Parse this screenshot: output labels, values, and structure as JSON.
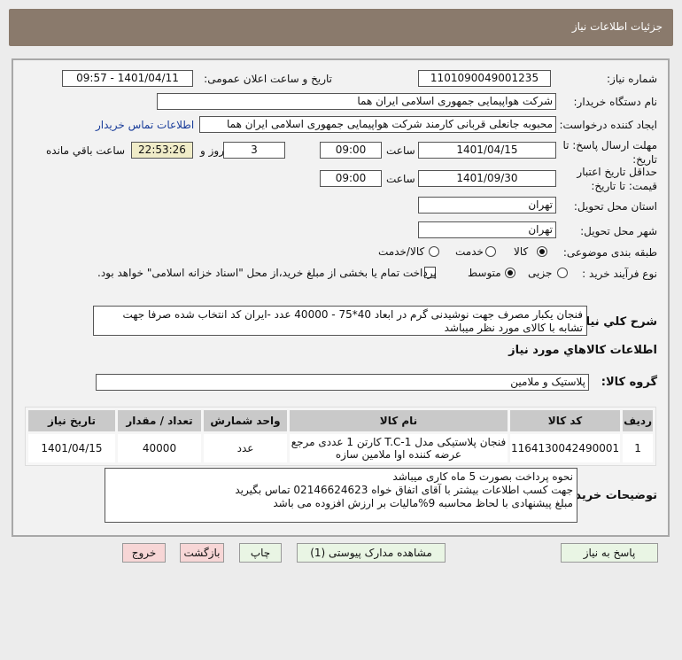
{
  "header": {
    "title": "جزئیات اطلاعات نیاز"
  },
  "form": {
    "need_number_label": "شماره نیاز:",
    "need_number": "1101090049001235",
    "announce_label": "تاریخ و ساعت اعلان عمومی:",
    "announce_value": "1401/04/11 - 09:57",
    "buyer_org_label": "نام دستگاه خریدار:",
    "buyer_org": "شرکت هواپیمایی جمهوری اسلامی ایران هما",
    "creator_label": "ایجاد کننده درخواست:",
    "creator": "محبوبه جانعلی قربانی کارمند شرکت هواپیمایی جمهوری اسلامی ایران هما",
    "contact_link": "اطلاعات تماس خریدار",
    "deadline_label": "مهلت ارسال پاسخ: تا تاریخ:",
    "deadline_date": "1401/04/15",
    "time_label": "ساعت",
    "deadline_time": "09:00",
    "days": "3",
    "days_label": "روز و",
    "remaining": "22:53:26",
    "remaining_label": "ساعت باقي مانده",
    "validity_label": "حداقل تاریخ اعتبار قیمت: تا تاریخ:",
    "validity_date": "1401/09/30",
    "validity_time": "09:00",
    "province_label": "استان محل تحویل:",
    "province": "تهران",
    "city_label": "شهر محل تحویل:",
    "city": "تهران",
    "category_label": "طبقه بندی موضوعی:",
    "category_options": [
      "کالا",
      "خدمت",
      "کالا/خدمت"
    ],
    "category_selected": "کالا",
    "process_label": "نوع فرآیند خرید :",
    "process_options": [
      "جزیی",
      "متوسط"
    ],
    "process_selected": "متوسط",
    "payment_note": "پرداخت تمام یا بخشی از مبلغ خرید،از محل \"اسناد خزانه اسلامی\" خواهد بود.",
    "summary_label": "شرح کلي نياز:",
    "summary": "فنجان یکبار مصرف جهت نوشیدنی گرم در ابعاد 40*75 - 40000 عدد -ایران کد انتخاب شده صرفا جهت تشابه با کالای مورد نظر میباشد"
  },
  "goods": {
    "section_title": "اطلاعات کالاهاي مورد نياز",
    "group_label": "گروه کالا:",
    "group": "پلاستیک و ملامین",
    "columns": [
      "ردیف",
      "کد کالا",
      "نام کالا",
      "واحد شمارش",
      "تعداد / مقدار",
      "تاریخ نیاز"
    ],
    "rows": [
      {
        "idx": "1",
        "code": "1164130042490001",
        "name": "فنجان پلاستیکی مدل T.C-1 کارتن 1 عددی مرجع عرضه کننده اوا ملامین سازه",
        "unit": "عدد",
        "qty": "40000",
        "date": "1401/04/15"
      }
    ]
  },
  "buyer_notes": {
    "label": "توضیحات خریدار:",
    "lines": [
      "نحوه پرداخت بصورت 5 ماه کاری میباشد",
      "جهت کسب اطلاعات بیشتر با آقای اتفاق خواه  02146624623 تماس بگیرید",
      "مبلغ پیشنهادی با لحاظ محاسبه 9%مالیات بر ارزش افزوده می باشد"
    ]
  },
  "buttons": {
    "reply": "پاسخ به نیاز",
    "attachments": "مشاهده مدارک پیوستی (1)",
    "print": "چاپ",
    "back": "بازگشت",
    "exit": "خروج"
  }
}
